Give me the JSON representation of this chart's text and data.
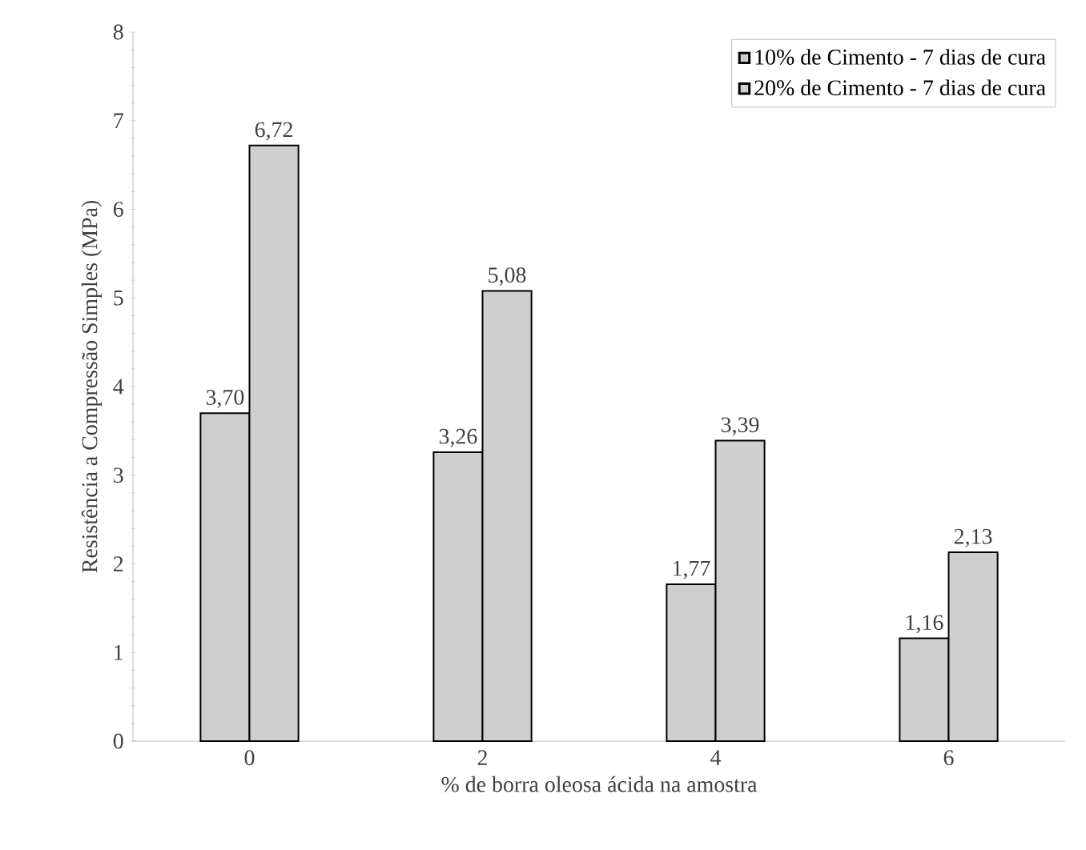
{
  "chart_data": {
    "type": "bar",
    "xlabel": "% de borra oleosa ácida na amostra",
    "ylabel": "Resistência a Compressão Simples (MPa)",
    "categories": [
      "0",
      "2",
      "4",
      "6"
    ],
    "series": [
      {
        "name": "10% de Cimento - 7 dias de cura",
        "color": "#cfcfcf",
        "values": [
          3.7,
          3.26,
          1.77,
          1.16
        ],
        "value_labels": [
          "3,70",
          "3,26",
          "1,77",
          "1,16"
        ]
      },
      {
        "name": "20% de Cimento - 7 dias de cura",
        "color": "#cfcfcf",
        "values": [
          6.72,
          5.08,
          3.39,
          2.13
        ],
        "value_labels": [
          "6,72",
          "5,08",
          "3,39",
          "2,13"
        ]
      }
    ],
    "ylim": [
      0,
      8
    ],
    "yticks": [
      0,
      1,
      2,
      3,
      4,
      5,
      6,
      7,
      8
    ],
    "grid": false,
    "legend": "top right"
  }
}
